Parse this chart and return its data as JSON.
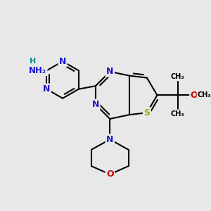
{
  "bg_color": "#e8e8e8",
  "bond_color": "#000000",
  "N_color": "#1818cc",
  "O_color": "#cc0000",
  "S_color": "#aaaa00",
  "H_color": "#008888",
  "lw": 1.5,
  "fs": 9.0,
  "xlim": [
    0,
    10
  ],
  "ylim": [
    0,
    10
  ],
  "figsize": [
    3.0,
    3.0
  ],
  "dpi": 100
}
